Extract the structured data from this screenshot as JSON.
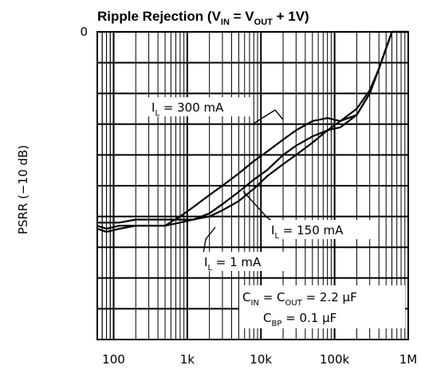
{
  "chart_data": {
    "type": "line",
    "title": {
      "main": "Ripple Rejection (V",
      "sub1": "IN",
      "mid": " = V",
      "sub2": "OUT",
      "tail": " + 1V)"
    },
    "ylabel": "PSRR (−10 dB)",
    "xlabel": "",
    "x_scale": "log",
    "xlim": [
      60,
      1000000
    ],
    "ylim": [
      -10,
      0
    ],
    "x_ticks": [
      {
        "value": 100,
        "label": "100"
      },
      {
        "value": 1000,
        "label": "1k"
      },
      {
        "value": 10000,
        "label": "10k"
      },
      {
        "value": 100000,
        "label": "100k"
      },
      {
        "value": 1000000,
        "label": "1M"
      }
    ],
    "y_ticks": [
      {
        "value": 0,
        "label": "0"
      }
    ],
    "grid": true,
    "series": [
      {
        "name": "I_L = 300 mA",
        "x": [
          60,
          80,
          120,
          200,
          300,
          500,
          800,
          1200,
          2000,
          3000,
          5000,
          8000,
          12000,
          20000,
          30000,
          50000,
          80000,
          120000,
          200000,
          300000,
          400000,
          600000,
          1000000
        ],
        "y": [
          -6.3,
          -6.4,
          -6.3,
          -6.3,
          -6.3,
          -6.3,
          -6.0,
          -5.7,
          -5.3,
          -5.0,
          -4.6,
          -4.2,
          -3.9,
          -3.5,
          -3.2,
          -2.9,
          -2.8,
          -2.9,
          -2.7,
          -2.0,
          -1.2,
          0.0,
          0.0
        ]
      },
      {
        "name": "I_L = 150 mA",
        "x": [
          60,
          80,
          120,
          200,
          300,
          500,
          800,
          1200,
          2000,
          3000,
          5000,
          8000,
          12000,
          20000,
          30000,
          50000,
          80000,
          120000,
          200000,
          300000,
          400000,
          600000,
          1000000
        ],
        "y": [
          -6.4,
          -6.5,
          -6.4,
          -6.3,
          -6.3,
          -6.3,
          -6.2,
          -6.1,
          -5.9,
          -5.6,
          -5.2,
          -4.8,
          -4.5,
          -4.0,
          -3.7,
          -3.4,
          -3.2,
          -3.1,
          -2.7,
          -2.0,
          -1.2,
          0.0,
          0.0
        ]
      },
      {
        "name": "I_L = 1 mA",
        "x": [
          60,
          80,
          120,
          200,
          300,
          500,
          800,
          1200,
          2000,
          3000,
          5000,
          8000,
          12000,
          20000,
          30000,
          50000,
          80000,
          120000,
          200000,
          300000,
          400000,
          600000,
          1000000
        ],
        "y": [
          -6.2,
          -6.2,
          -6.2,
          -6.1,
          -6.1,
          -6.1,
          -6.1,
          -6.1,
          -6.0,
          -5.8,
          -5.5,
          -5.1,
          -4.7,
          -4.3,
          -4.0,
          -3.6,
          -3.2,
          -2.9,
          -2.5,
          -1.9,
          -1.2,
          0.0,
          0.0
        ]
      }
    ],
    "annotations": [
      {
        "id": "a300",
        "pre": "I",
        "sub": "L",
        "post": " = 300 mA"
      },
      {
        "id": "a150",
        "pre": "I",
        "sub": "L",
        "post": " = 150 mA"
      },
      {
        "id": "a1",
        "pre": "I",
        "sub": "L",
        "post": " = 1 mA"
      },
      {
        "id": "cond1",
        "pre": "C",
        "sub": "IN",
        "mid": " = C",
        "sub2": "OUT",
        "post": " = 2.2 μF"
      },
      {
        "id": "cond2",
        "pre": "C",
        "sub": "BP",
        "post": " = 0.1 μF"
      }
    ]
  }
}
